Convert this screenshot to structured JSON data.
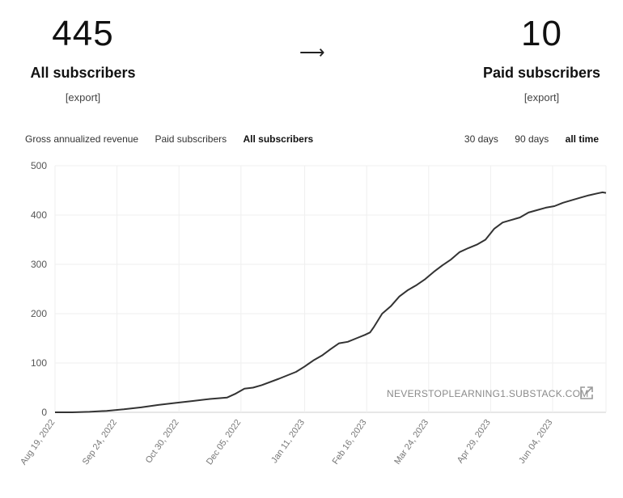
{
  "stats": {
    "all": {
      "value": "445",
      "label": "All subscribers",
      "export": "[export]"
    },
    "arrow": "⟶",
    "paid": {
      "value": "10",
      "label": "Paid subscribers",
      "export": "[export]"
    }
  },
  "metric_tabs": [
    {
      "label": "Gross annualized revenue",
      "active": false
    },
    {
      "label": "Paid subscribers",
      "active": false
    },
    {
      "label": "All subscribers",
      "active": true
    }
  ],
  "range_tabs": [
    {
      "label": "30 days",
      "active": false
    },
    {
      "label": "90 days",
      "active": false
    },
    {
      "label": "all time",
      "active": true
    }
  ],
  "watermark": "NEVERSTOPLEARNING1.SUBSTACK.COM",
  "chart_data": {
    "type": "line",
    "title": "",
    "xlabel": "",
    "ylabel": "",
    "ylim": [
      0,
      500
    ],
    "y_ticks": [
      0,
      100,
      200,
      300,
      400,
      500
    ],
    "x_ticks": [
      "Aug 19, 2022",
      "Sep 24, 2022",
      "Oct 30, 2022",
      "Dec 05, 2022",
      "Jan 11, 2023",
      "Feb 16, 2023",
      "Mar 24, 2023",
      "Apr 29, 2023",
      "Jun 04, 2023"
    ],
    "grid": true,
    "line_color": "#333333",
    "series": [
      {
        "name": "",
        "x": [
          "2022-08-19",
          "2022-08-29",
          "2022-09-08",
          "2022-09-18",
          "2022-09-28",
          "2022-10-08",
          "2022-10-18",
          "2022-10-28",
          "2022-11-07",
          "2022-11-17",
          "2022-11-27",
          "2022-12-02",
          "2022-12-07",
          "2022-12-12",
          "2022-12-17",
          "2022-12-27",
          "2023-01-06",
          "2023-01-11",
          "2023-01-16",
          "2023-01-21",
          "2023-01-26",
          "2023-01-31",
          "2023-02-05",
          "2023-02-10",
          "2023-02-15",
          "2023-02-18",
          "2023-02-20",
          "2023-02-25",
          "2023-03-02",
          "2023-03-07",
          "2023-03-12",
          "2023-03-17",
          "2023-03-22",
          "2023-03-27",
          "2023-04-01",
          "2023-04-06",
          "2023-04-11",
          "2023-04-16",
          "2023-04-21",
          "2023-04-26",
          "2023-05-01",
          "2023-05-06",
          "2023-05-11",
          "2023-05-16",
          "2023-05-21",
          "2023-05-26",
          "2023-05-31",
          "2023-06-05",
          "2023-06-10",
          "2023-06-15",
          "2023-06-20",
          "2023-06-25",
          "2023-06-30",
          "2023-07-03",
          "2023-07-05"
        ],
        "values": [
          0,
          0,
          1,
          3,
          6,
          10,
          15,
          19,
          23,
          27,
          30,
          38,
          48,
          50,
          55,
          68,
          82,
          93,
          105,
          115,
          128,
          140,
          143,
          150,
          157,
          162,
          172,
          200,
          215,
          235,
          248,
          258,
          270,
          285,
          298,
          310,
          325,
          333,
          340,
          350,
          372,
          385,
          390,
          395,
          405,
          410,
          415,
          418,
          425,
          430,
          435,
          440,
          444,
          446,
          445
        ]
      }
    ]
  }
}
